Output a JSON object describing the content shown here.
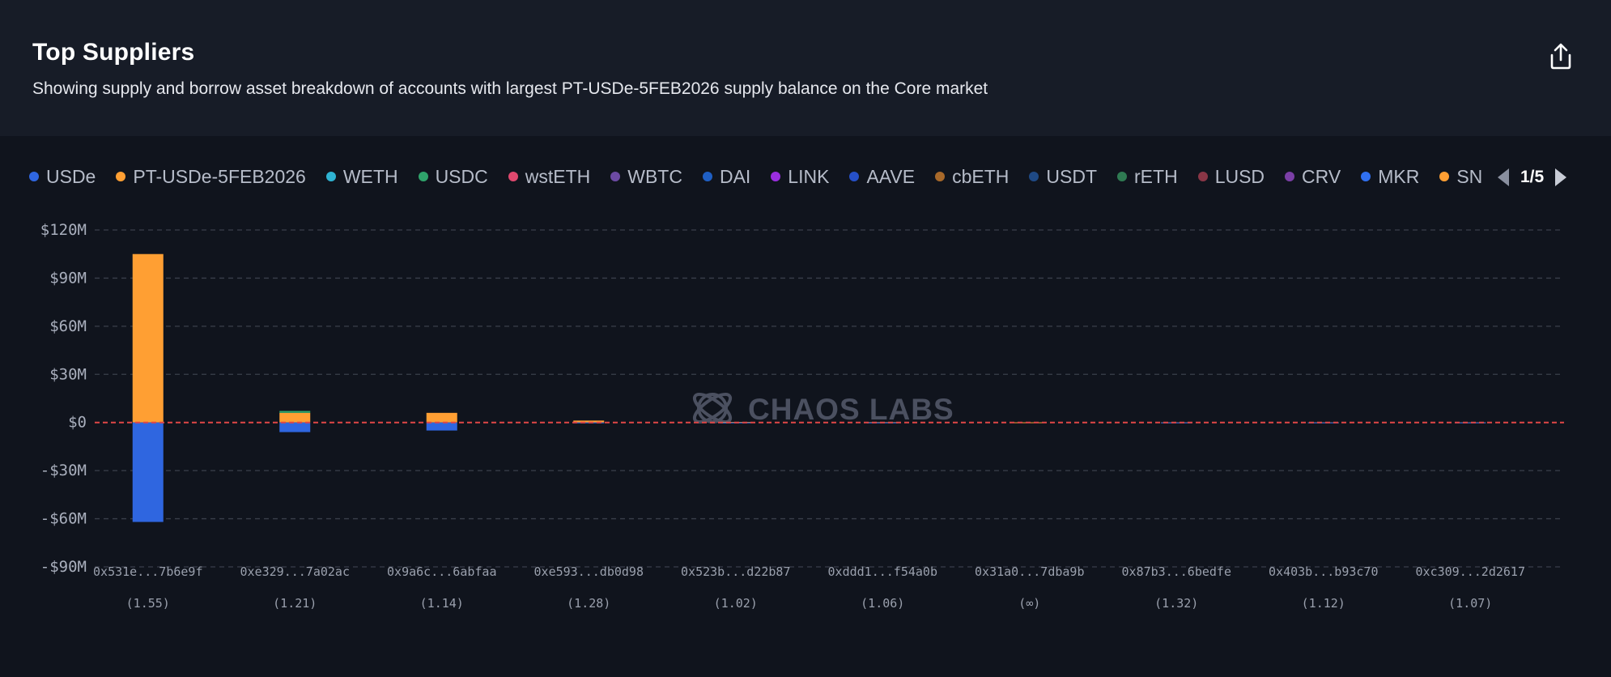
{
  "header": {
    "title": "Top Suppliers",
    "subtitle": "Showing supply and borrow asset breakdown of accounts with largest PT-USDe-5FEB2026 supply balance on the Core market",
    "export_icon": "share-upload-icon"
  },
  "legend": {
    "items": [
      {
        "label": "USDe",
        "color": "#2f66e0"
      },
      {
        "label": "PT-USDe-5FEB2026",
        "color": "#ff9f33"
      },
      {
        "label": "WETH",
        "color": "#2fb3d2"
      },
      {
        "label": "USDC",
        "color": "#2fa36b"
      },
      {
        "label": "wstETH",
        "color": "#e0486e"
      },
      {
        "label": "WBTC",
        "color": "#6c4aa3"
      },
      {
        "label": "DAI",
        "color": "#1f5fc4"
      },
      {
        "label": "LINK",
        "color": "#9b2ee0"
      },
      {
        "label": "AAVE",
        "color": "#2650c8"
      },
      {
        "label": "cbETH",
        "color": "#a8692a"
      },
      {
        "label": "USDT",
        "color": "#1f4a86"
      },
      {
        "label": "rETH",
        "color": "#2f7a52"
      },
      {
        "label": "LUSD",
        "color": "#8a3646"
      },
      {
        "label": "CRV",
        "color": "#7b3fa6"
      },
      {
        "label": "MKR",
        "color": "#3070f0"
      },
      {
        "label": "SN",
        "color": "#ff9f33"
      }
    ],
    "pager": "1/5"
  },
  "watermark": {
    "text": "CHAOS LABS"
  },
  "chart_data": {
    "type": "bar",
    "stacked": true,
    "categories": [
      "0x531e...7b6e9f",
      "0xe329...7a02ac",
      "0x9a6c...6abfaa",
      "0xe593...db0d98",
      "0x523b...d22b87",
      "0xddd1...f54a0b",
      "0x31a0...7dba9b",
      "0x87b3...6bedfe",
      "0x403b...b93c70",
      "0xc309...2d2617"
    ],
    "health_factors": [
      "(1.55)",
      "(1.21)",
      "(1.14)",
      "(1.28)",
      "(1.02)",
      "(1.06)",
      "(∞)",
      "(1.32)",
      "(1.12)",
      "(1.07)"
    ],
    "ylim": [
      -90,
      120
    ],
    "yticks": [
      120,
      90,
      60,
      30,
      0,
      -30,
      -60,
      -90
    ],
    "ytick_labels": [
      "$120M",
      "$90M",
      "$60M",
      "$30M",
      "$0",
      "-$30M",
      "-$60M",
      "-$90M"
    ],
    "unit": "$M",
    "grid": true,
    "zero_line_color": "#e04646",
    "series": [
      {
        "name": "PT-USDe-5FEB2026",
        "color": "#ff9f33",
        "values": [
          105,
          6,
          6,
          1.2,
          0.3,
          0.2,
          0.1,
          0.1,
          0.1,
          0.1
        ]
      },
      {
        "name": "USDC",
        "color": "#2fa36b",
        "values": [
          0,
          1.2,
          0,
          0,
          0,
          0,
          0,
          0,
          0,
          0
        ]
      },
      {
        "name": "USDe",
        "color": "#2f66e0",
        "values": [
          -62,
          -6,
          -5,
          -0.3,
          -0.1,
          -0.1,
          0,
          -0.1,
          -0.1,
          -0.1
        ]
      }
    ]
  }
}
